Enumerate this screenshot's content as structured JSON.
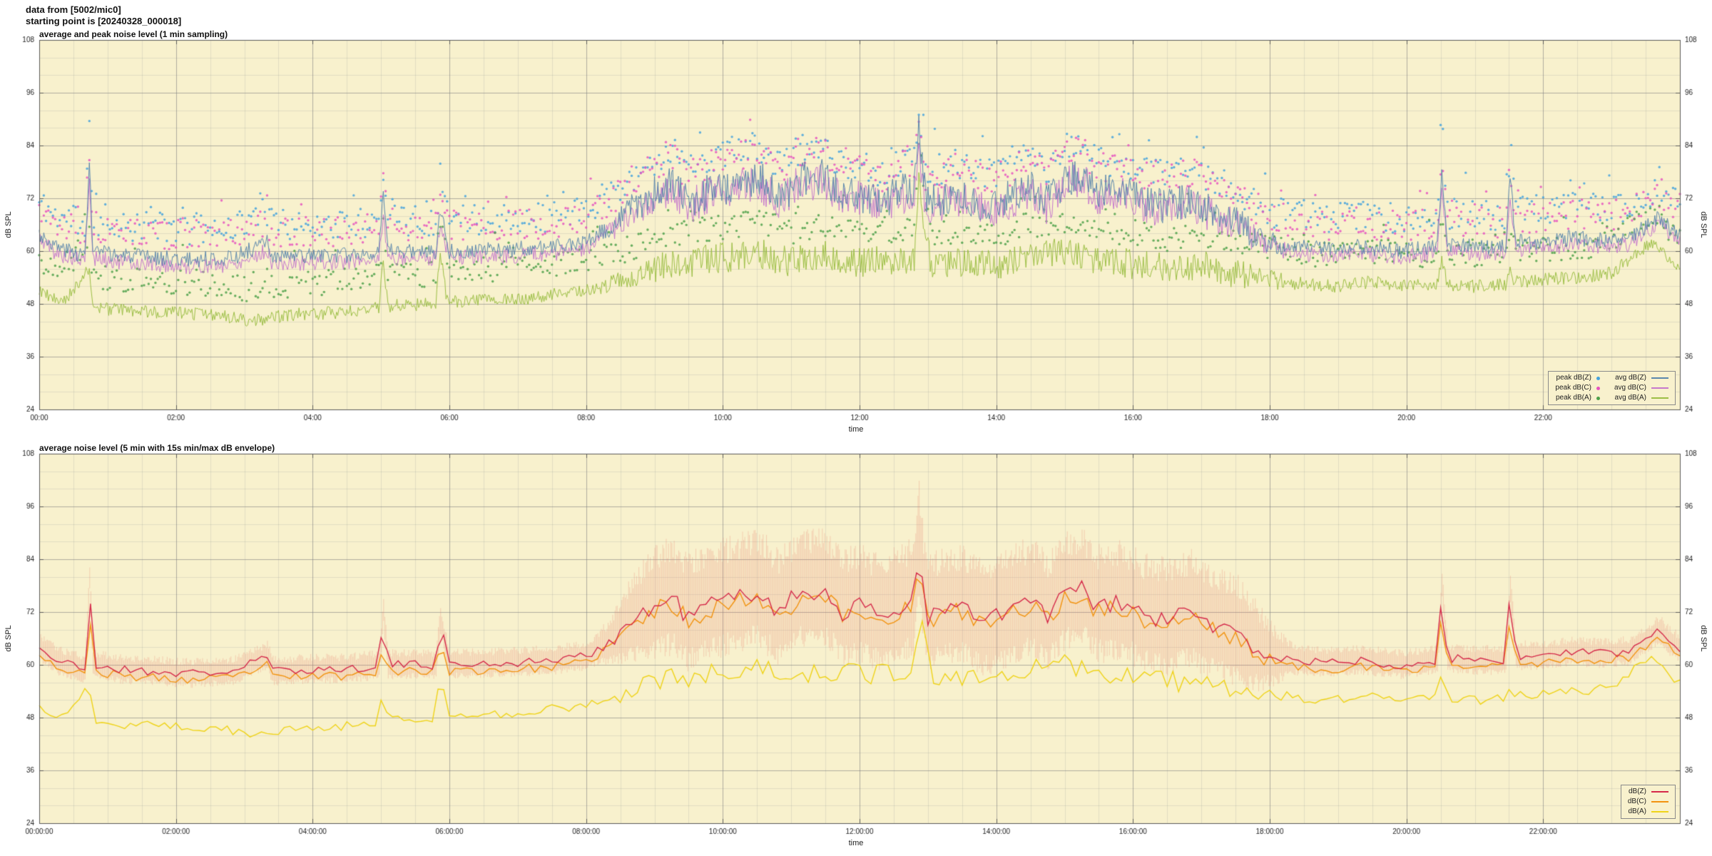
{
  "header": {
    "line1": "data from [5002/mic0]",
    "line2": "starting point is [20240328_000018]"
  },
  "colors": {
    "page_bg": "#ffffff",
    "plot_bg": "#f8f1cd",
    "grid_major": "rgba(125,125,125,0.5)",
    "grid_minor": "rgba(150,150,150,0.22)",
    "axis": "#5a5a5a",
    "text": "#222222"
  },
  "chart_data": [
    {
      "type": "line+scatter",
      "title": "average and peak noise level (1 min sampling)",
      "xlabel": "time",
      "ylabel": "dB SPL",
      "ylabel_right": "dB SPL",
      "ylim": [
        24,
        108
      ],
      "yticks": [
        24,
        36,
        48,
        60,
        72,
        84,
        96,
        108
      ],
      "y_minor_step": 4,
      "xrange_min": [
        0,
        1440
      ],
      "x_minor_step_min": 30,
      "grid": true,
      "legend_position": "bottom-right",
      "line_width": 1,
      "xticks": [
        {
          "min": 0,
          "label": "00:00"
        },
        {
          "min": 120,
          "label": "02:00"
        },
        {
          "min": 240,
          "label": "04:00"
        },
        {
          "min": 360,
          "label": "06:00"
        },
        {
          "min": 480,
          "label": "08:00"
        },
        {
          "min": 600,
          "label": "10:00"
        },
        {
          "min": 720,
          "label": "12:00"
        },
        {
          "min": 840,
          "label": "14:00"
        },
        {
          "min": 960,
          "label": "16:00"
        },
        {
          "min": 1080,
          "label": "18:00"
        },
        {
          "min": 1200,
          "label": "20:00"
        },
        {
          "min": 1320,
          "label": "22:00"
        }
      ],
      "series": [
        {
          "name": "avg dB(Z)",
          "color": "#5b87ad",
          "step_min": 1,
          "jitter": 1.8,
          "seed": 3,
          "t": [
            0,
            15,
            40,
            44,
            47,
            70,
            100,
            130,
            170,
            200,
            205,
            240,
            270,
            298,
            302,
            306,
            330,
            348,
            352,
            360,
            420,
            450,
            480,
            505,
            520,
            540,
            555,
            570,
            590,
            610,
            630,
            650,
            665,
            690,
            705,
            720,
            740,
            762,
            768,
            772,
            778,
            810,
            830,
            850,
            870,
            885,
            900,
            915,
            930,
            950,
            970,
            990,
            1010,
            1030,
            1050,
            1065,
            1080,
            1100,
            1130,
            1160,
            1195,
            1227,
            1231,
            1236,
            1260,
            1287,
            1291,
            1296,
            1320,
            1345,
            1370,
            1395,
            1412,
            1422,
            1432,
            1439
          ],
          "v": [
            64,
            61,
            59,
            80,
            60,
            59,
            58.5,
            58,
            58.5,
            62,
            58.5,
            59,
            59,
            60,
            72,
            60,
            60,
            60,
            70,
            60,
            60.5,
            61,
            62,
            66,
            70,
            73,
            75,
            71,
            74,
            75,
            77,
            72,
            76,
            77,
            72,
            73,
            71,
            74,
            74,
            88,
            71,
            73,
            70,
            72,
            75,
            71,
            76,
            77,
            73,
            74,
            71,
            70,
            72,
            69,
            67,
            64,
            62,
            61,
            60.5,
            61,
            60,
            61,
            78,
            61.5,
            61,
            61,
            77,
            62,
            62,
            63,
            62.5,
            63,
            66,
            68,
            65,
            64
          ]
        },
        {
          "name": "avg dB(C)",
          "color": "#c678cc",
          "step_min": 1,
          "jitter": 1.8,
          "seed": 5,
          "t": [
            0,
            15,
            40,
            44,
            47,
            70,
            100,
            130,
            170,
            200,
            205,
            240,
            270,
            298,
            302,
            306,
            330,
            348,
            352,
            360,
            420,
            450,
            480,
            505,
            520,
            540,
            555,
            570,
            590,
            610,
            630,
            650,
            665,
            690,
            705,
            720,
            740,
            762,
            768,
            772,
            778,
            810,
            830,
            850,
            870,
            885,
            900,
            915,
            930,
            950,
            970,
            990,
            1010,
            1030,
            1050,
            1065,
            1080,
            1100,
            1130,
            1160,
            1195,
            1227,
            1231,
            1236,
            1260,
            1287,
            1291,
            1296,
            1320,
            1345,
            1370,
            1395,
            1412,
            1422,
            1432,
            1439
          ],
          "v": [
            63,
            59.5,
            57.5,
            76,
            58.5,
            57.5,
            57,
            56.5,
            57,
            60,
            57,
            57.5,
            57.5,
            58.5,
            68,
            58.5,
            58.5,
            58.5,
            66,
            58.5,
            59,
            59.5,
            60.5,
            65,
            69,
            72,
            74,
            70,
            73,
            74,
            76,
            71,
            75,
            76,
            71,
            72,
            70,
            73,
            73,
            84,
            70,
            72,
            69,
            71,
            74,
            70,
            75,
            76,
            72,
            73,
            70,
            69,
            71,
            68,
            66,
            63,
            61,
            59.5,
            59,
            59.5,
            58.5,
            59.5,
            74,
            60,
            59.5,
            59.5,
            73,
            60.5,
            60.5,
            61.5,
            61,
            61.5,
            64.5,
            66.5,
            63.5,
            62.5
          ]
        },
        {
          "name": "avg dB(A)",
          "color": "#9cbf45",
          "step_min": 1,
          "jitter": 1.5,
          "seed": 9,
          "t": [
            0,
            20,
            44,
            47,
            80,
            120,
            160,
            185,
            220,
            260,
            298,
            302,
            306,
            348,
            352,
            358,
            420,
            450,
            480,
            510,
            540,
            570,
            600,
            630,
            660,
            690,
            720,
            750,
            768,
            772,
            782,
            840,
            870,
            900,
            930,
            960,
            990,
            1020,
            1050,
            1080,
            1110,
            1140,
            1170,
            1200,
            1227,
            1231,
            1236,
            1260,
            1287,
            1291,
            1296,
            1320,
            1350,
            1380,
            1405,
            1415,
            1425,
            1439
          ],
          "v": [
            51,
            48,
            56,
            47,
            46.5,
            46,
            45.5,
            44,
            45.5,
            46,
            47,
            58,
            47.5,
            48,
            60,
            48.5,
            49,
            50,
            51,
            53,
            56,
            57.5,
            58.5,
            59.5,
            57.5,
            59,
            57.5,
            58,
            58,
            76,
            57.5,
            57,
            59,
            60,
            58,
            57,
            56,
            57,
            55,
            53.5,
            52.5,
            52,
            53,
            52,
            52.5,
            58,
            52.5,
            52,
            52.5,
            55,
            53,
            53.5,
            54,
            55,
            60,
            62,
            60,
            56
          ]
        }
      ],
      "peak_series": [
        {
          "name": "peak dB(Z)",
          "color": "#44a2dd",
          "base": 0,
          "step_min": 2,
          "mean": 7,
          "spread": 7,
          "seed": 11
        },
        {
          "name": "peak dB(C)",
          "color": "#e653c0",
          "base": 1,
          "step_min": 2,
          "mean": 7,
          "spread": 7,
          "seed": 13
        },
        {
          "name": "peak dB(A)",
          "color": "#4da14a",
          "base": 2,
          "step_min": 2,
          "mean": 7,
          "spread": 6,
          "seed": 17
        }
      ]
    },
    {
      "type": "line+band",
      "title": "average noise level (5 min with 15s min/max dB envelope)",
      "xlabel": "time",
      "ylabel": "dB SPL",
      "ylabel_right": "dB SPL",
      "ylim": [
        24,
        108
      ],
      "yticks": [
        24,
        36,
        48,
        60,
        72,
        84,
        96,
        108
      ],
      "y_minor_step": 4,
      "xrange_min": [
        0,
        1440
      ],
      "x_minor_step_min": 30,
      "grid": true,
      "legend_position": "bottom-right",
      "line_width": 1.4,
      "xticks": [
        {
          "min": 0,
          "label": "00:00:00"
        },
        {
          "min": 120,
          "label": "02:00:00"
        },
        {
          "min": 240,
          "label": "04:00:00"
        },
        {
          "min": 360,
          "label": "06:00:00"
        },
        {
          "min": 480,
          "label": "08:00:00"
        },
        {
          "min": 600,
          "label": "10:00:00"
        },
        {
          "min": 720,
          "label": "12:00:00"
        },
        {
          "min": 840,
          "label": "14:00:00"
        },
        {
          "min": 960,
          "label": "16:00:00"
        },
        {
          "min": 1080,
          "label": "18:00:00"
        },
        {
          "min": 1200,
          "label": "20:00:00"
        },
        {
          "min": 1320,
          "label": "22:00:00"
        }
      ],
      "envelope": {
        "base": 0,
        "color": "rgba(231,121,105,0.3)",
        "seed": 31,
        "base_up": 1.8,
        "base_dn": 1.8,
        "busy_up": 6.5,
        "busy_dn": 5.5,
        "rand_up": 1.8,
        "rand_dn": 1.5,
        "busy_rand_up": 4.5,
        "busy_rand_dn": 4.0
      },
      "series": [
        {
          "name": "dB(Z)",
          "color": "#d5294a",
          "step_min": 5,
          "jitter": 1.0,
          "seed": 21,
          "t": [
            0,
            15,
            40,
            44,
            47,
            70,
            100,
            130,
            170,
            200,
            205,
            240,
            270,
            298,
            302,
            306,
            330,
            348,
            352,
            360,
            420,
            450,
            480,
            505,
            520,
            540,
            555,
            570,
            590,
            610,
            630,
            650,
            665,
            690,
            705,
            720,
            740,
            762,
            768,
            772,
            778,
            810,
            830,
            850,
            870,
            885,
            900,
            915,
            930,
            950,
            970,
            990,
            1010,
            1030,
            1050,
            1065,
            1080,
            1100,
            1130,
            1160,
            1195,
            1227,
            1231,
            1236,
            1260,
            1287,
            1291,
            1296,
            1320,
            1345,
            1370,
            1395,
            1412,
            1422,
            1432,
            1439
          ],
          "v": [
            64,
            61,
            59,
            80,
            60,
            59,
            58.5,
            58,
            58.5,
            62,
            58.5,
            59,
            59,
            60,
            72,
            60,
            60,
            60,
            70,
            60,
            60.5,
            61,
            62,
            66,
            70,
            73,
            75,
            71,
            74,
            75,
            77,
            72,
            76,
            77,
            72,
            73,
            71,
            74,
            74,
            88,
            71,
            73,
            70,
            72,
            75,
            71,
            76,
            77,
            73,
            74,
            71,
            70,
            72,
            69,
            67,
            64,
            62,
            61,
            60.5,
            61,
            60,
            61,
            78,
            61.5,
            61,
            61,
            77,
            62,
            62,
            63,
            62.5,
            63,
            66,
            68,
            65,
            64
          ]
        },
        {
          "name": "dB(C)",
          "color": "#f2930f",
          "step_min": 5,
          "jitter": 1.0,
          "seed": 23,
          "t": [
            0,
            15,
            40,
            44,
            47,
            70,
            100,
            130,
            170,
            200,
            205,
            240,
            270,
            298,
            302,
            306,
            330,
            348,
            352,
            360,
            420,
            450,
            480,
            505,
            520,
            540,
            555,
            570,
            590,
            610,
            630,
            650,
            665,
            690,
            705,
            720,
            740,
            762,
            768,
            772,
            778,
            810,
            830,
            850,
            870,
            885,
            900,
            915,
            930,
            950,
            970,
            990,
            1010,
            1030,
            1050,
            1065,
            1080,
            1100,
            1130,
            1160,
            1195,
            1227,
            1231,
            1236,
            1260,
            1287,
            1291,
            1296,
            1320,
            1345,
            1370,
            1395,
            1412,
            1422,
            1432,
            1439
          ],
          "v": [
            63,
            59.5,
            57.5,
            76,
            58.5,
            57.5,
            57,
            56.5,
            57,
            60,
            57,
            57.5,
            57.5,
            58.5,
            68,
            58.5,
            58.5,
            58.5,
            66,
            58.5,
            59,
            59.5,
            60.5,
            65,
            69,
            72,
            74,
            70,
            73,
            74,
            76,
            71,
            75,
            76,
            71,
            72,
            70,
            73,
            73,
            84,
            70,
            72,
            69,
            71,
            74,
            70,
            75,
            76,
            72,
            73,
            70,
            69,
            71,
            68,
            66,
            63,
            61,
            59.5,
            59,
            59.5,
            58.5,
            59.5,
            74,
            60,
            59.5,
            59.5,
            73,
            60.5,
            60.5,
            61.5,
            61,
            61.5,
            64.5,
            66.5,
            63.5,
            62.5
          ]
        },
        {
          "name": "dB(A)",
          "color": "#efd318",
          "step_min": 5,
          "jitter": 1.1,
          "seed": 27,
          "t": [
            0,
            20,
            44,
            47,
            80,
            120,
            160,
            185,
            220,
            260,
            298,
            302,
            306,
            348,
            352,
            358,
            420,
            450,
            480,
            510,
            540,
            570,
            600,
            630,
            660,
            690,
            720,
            750,
            768,
            772,
            782,
            840,
            870,
            900,
            930,
            960,
            990,
            1020,
            1050,
            1080,
            1110,
            1140,
            1170,
            1200,
            1227,
            1231,
            1236,
            1260,
            1287,
            1291,
            1296,
            1320,
            1350,
            1380,
            1405,
            1415,
            1425,
            1439
          ],
          "v": [
            51,
            48,
            56,
            47,
            46.5,
            46,
            45.5,
            44,
            45.5,
            46,
            47,
            58,
            47.5,
            48,
            60,
            48.5,
            49,
            50,
            51,
            53,
            56,
            57.5,
            58.5,
            59.5,
            57.5,
            59,
            57.5,
            58,
            58,
            76,
            57.5,
            57,
            59,
            60,
            58,
            57,
            56,
            57,
            55,
            53.5,
            52.5,
            52,
            53,
            52,
            52.5,
            58,
            52.5,
            52,
            52.5,
            55,
            53,
            53.5,
            54,
            55,
            60,
            62,
            60,
            56
          ]
        }
      ]
    }
  ]
}
